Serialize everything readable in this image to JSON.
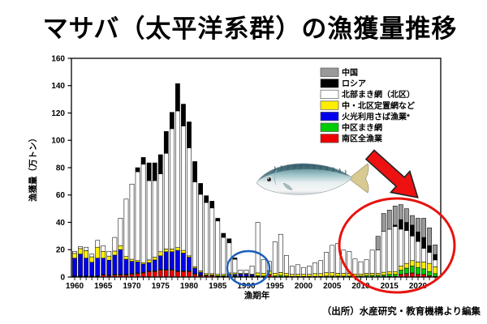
{
  "title": "マサバ（太平洋系群）の漁獲量推移",
  "source": "（出所）水産研究・教育機構より編集",
  "annotations": {
    "fish_image": "chub-mackerel-photo",
    "decline_arrow": {
      "color": "#ee1111",
      "outline": "#222222",
      "direction": "down-right"
    },
    "recent_years_circle": {
      "color": "#e8120d"
    },
    "low_period_circle": {
      "color": "#1d5fb8"
    }
  },
  "chart_data": {
    "type": "bar",
    "stacked": true,
    "grid": false,
    "legend_position": "upper-right-inside",
    "xlabel": "漁期年",
    "ylabel": "漁獲量（万トン）",
    "ylim": [
      0,
      160
    ],
    "yticks": [
      0,
      20,
      40,
      60,
      80,
      100,
      120,
      140,
      160
    ],
    "xticks": [
      1960,
      1965,
      1970,
      1975,
      1980,
      1985,
      1990,
      1995,
      2000,
      2005,
      2010,
      2015,
      2020
    ],
    "x": [
      1960,
      1961,
      1962,
      1963,
      1964,
      1965,
      1966,
      1967,
      1968,
      1969,
      1970,
      1971,
      1972,
      1973,
      1974,
      1975,
      1976,
      1977,
      1978,
      1979,
      1980,
      1981,
      1982,
      1983,
      1984,
      1985,
      1986,
      1987,
      1988,
      1989,
      1990,
      1991,
      1992,
      1993,
      1994,
      1995,
      1996,
      1997,
      1998,
      1999,
      2000,
      2001,
      2002,
      2003,
      2004,
      2005,
      2006,
      2007,
      2008,
      2009,
      2010,
      2011,
      2012,
      2013,
      2014,
      2015,
      2016,
      2017,
      2018,
      2019,
      2020,
      2021,
      2022,
      2023
    ],
    "legend": [
      {
        "label": "中国",
        "color": "#999999"
      },
      {
        "label": "ロシア",
        "color": "#000000"
      },
      {
        "label": "北部まき網（北区）",
        "color": "#ffffff"
      },
      {
        "label": "中・北区定置網など",
        "color": "#ffee00"
      },
      {
        "label": "火光利用さば漁業*",
        "color": "#0000ee"
      },
      {
        "label": "中区まき網",
        "color": "#00cc00"
      },
      {
        "label": "南区全漁業",
        "color": "#ee0000"
      }
    ],
    "series": [
      {
        "name": "南区全漁業",
        "color": "#ee0000",
        "values": [
          0.5,
          0.5,
          0.5,
          0.5,
          0.5,
          1.5,
          1,
          1.5,
          1.5,
          1.5,
          2,
          2.5,
          3,
          4,
          4,
          5,
          5,
          5,
          4,
          4,
          4,
          2,
          1,
          1,
          1,
          0.5,
          0.5,
          0.5,
          0.5,
          0.3,
          0.3,
          0.3,
          0.5,
          0.3,
          1.5,
          0.3,
          0.3,
          0.3,
          0.2,
          0.2,
          0.2,
          0.2,
          0.2,
          0.2,
          0.2,
          0.2,
          0.2,
          0.2,
          0.2,
          0.2,
          0.2,
          0.2,
          0.2,
          0.3,
          0.5,
          0.5,
          0.5,
          2,
          2.5,
          3,
          2,
          2,
          1,
          0.5
        ]
      },
      {
        "name": "中区まき網",
        "color": "#00cc00",
        "values": [
          0.3,
          0.3,
          0.3,
          0.3,
          0.3,
          0.3,
          0.3,
          0.5,
          0.5,
          0.5,
          0.5,
          0.5,
          0.5,
          0.5,
          0.5,
          0.5,
          0.5,
          0.5,
          0.5,
          0.5,
          0.5,
          0.5,
          0.5,
          0.5,
          0.5,
          0.5,
          0.5,
          0.5,
          0.5,
          0.3,
          0.3,
          0.3,
          0.5,
          0.5,
          0.5,
          0.5,
          1,
          0.5,
          0.3,
          0.3,
          0.3,
          0.3,
          0.3,
          0.3,
          0.5,
          0.5,
          0.5,
          0.5,
          0.5,
          0.5,
          0.5,
          1,
          1,
          1,
          1,
          1.5,
          1.5,
          3,
          4,
          5,
          5,
          4,
          3,
          2
        ]
      },
      {
        "name": "火光利用さば漁業*",
        "color": "#0000ee",
        "values": [
          13,
          16,
          13,
          10,
          13,
          12,
          11,
          14,
          18,
          11,
          9,
          8,
          6,
          6,
          8,
          10,
          13,
          13,
          15,
          13,
          10,
          4,
          2,
          0,
          0,
          0,
          0,
          1,
          1,
          1.5,
          1.5,
          1,
          0,
          0,
          0,
          0,
          0,
          0,
          0,
          0,
          0,
          0,
          0,
          0,
          0,
          0,
          0,
          0,
          0,
          0,
          0,
          0,
          0,
          0,
          0,
          0,
          0,
          0,
          0,
          0,
          0,
          0,
          0,
          0
        ]
      },
      {
        "name": "中・北区定置網など",
        "color": "#ffee00",
        "values": [
          3.5,
          4,
          5.5,
          4,
          8,
          5,
          3,
          3,
          3,
          2,
          1.5,
          1,
          1,
          2,
          2,
          3,
          2,
          2,
          2,
          2,
          1,
          1,
          1,
          1,
          1,
          1,
          1,
          1,
          1,
          0.5,
          0.5,
          0.5,
          2,
          2,
          2.5,
          2,
          2,
          2,
          1.5,
          1.5,
          1.5,
          1.5,
          2,
          2,
          2.5,
          2.5,
          2,
          2,
          2,
          1.5,
          1.5,
          1.5,
          1.5,
          1.5,
          2,
          2,
          2,
          3,
          3.5,
          4,
          4,
          5,
          6,
          5
        ]
      },
      {
        "name": "北部まき網（北区）",
        "color": "#ffffff",
        "values": [
          1.5,
          1.5,
          2.5,
          2,
          5,
          4,
          3.5,
          10,
          20,
          42,
          55,
          65,
          72,
          58,
          56,
          57,
          70,
          88,
          100,
          91,
          79,
          62,
          56,
          52,
          48,
          39,
          27,
          22,
          10,
          2.5,
          2.5,
          6,
          37,
          10,
          7,
          23,
          28,
          13,
          6,
          7,
          5,
          6,
          8,
          9.5,
          15,
          20,
          22,
          17,
          16,
          11,
          9,
          10,
          17,
          17,
          30,
          31,
          33,
          27,
          24,
          18,
          15,
          10,
          8,
          5
        ]
      },
      {
        "name": "ロシア",
        "color": "#000000",
        "values": [
          0,
          0,
          0,
          0,
          0,
          0,
          0,
          0,
          0,
          0,
          0,
          3,
          5,
          13,
          13,
          14,
          16,
          12,
          20,
          16,
          19,
          15,
          8,
          5,
          5,
          2,
          3,
          3,
          1,
          0,
          0,
          0,
          0,
          0,
          0,
          0,
          0,
          0,
          0,
          0,
          0,
          0,
          0,
          0,
          0,
          0,
          0,
          0,
          0,
          0,
          0,
          0,
          0,
          0,
          0,
          0,
          1,
          7,
          6,
          8,
          7,
          8,
          5,
          4
        ]
      },
      {
        "name": "中国",
        "color": "#999999",
        "values": [
          0,
          0,
          0,
          0,
          0,
          0,
          0,
          0,
          0,
          0,
          0,
          0,
          0,
          0,
          0,
          0,
          0,
          0,
          0,
          0,
          0,
          0,
          0,
          0,
          0,
          0,
          0,
          0,
          0,
          0,
          0,
          0,
          0,
          0,
          0,
          0,
          0,
          0,
          0,
          0,
          0,
          0,
          0,
          0,
          0,
          0,
          0,
          0,
          0,
          0,
          0,
          0,
          0,
          10,
          13,
          14,
          14,
          11,
          10,
          7,
          10,
          14,
          13,
          7
        ]
      }
    ]
  }
}
